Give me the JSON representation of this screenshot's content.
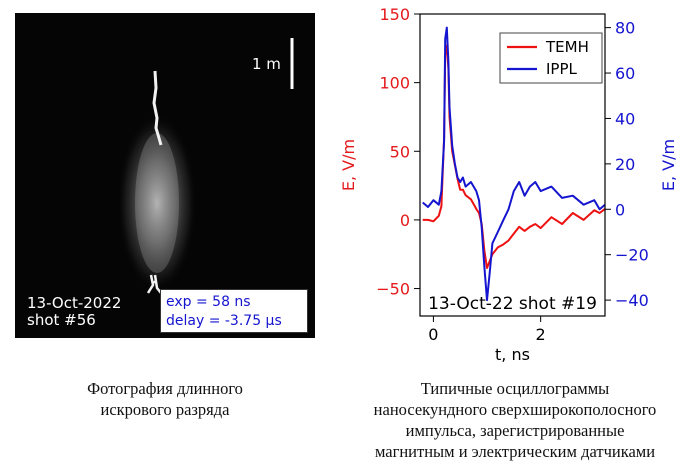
{
  "photo": {
    "scale_label": "1 m",
    "date": "13-Oct-2022",
    "shot": "shot #56",
    "exposure": "exp = 58 ns",
    "delay": "delay = -3.75 µs"
  },
  "captions": {
    "left": [
      "Фотография длинного",
      "искрового разряда"
    ],
    "right": [
      "Типичные осциллограммы",
      "наносекундного сверхширокополосного",
      "импульса, зарегистрированные",
      "магнитным и электрическим датчиками"
    ]
  },
  "chart_data": {
    "type": "line",
    "xlabel": "t, ns",
    "ylabel_left": "E, V/m",
    "ylabel_right": "E, V/m",
    "xlim": [
      -0.25,
      3.2
    ],
    "ylim_left": [
      -70,
      150
    ],
    "ylim_right": [
      -47,
      86
    ],
    "xticks": [
      0,
      2
    ],
    "yticks_left": [
      -50,
      0,
      50,
      100,
      150
    ],
    "yticks_right": [
      -40,
      -20,
      0,
      20,
      40,
      60,
      80
    ],
    "left_axis_color": "#e41a1c",
    "right_axis_color": "#1515d0",
    "legend_position": "top-right",
    "annotation": "13-Oct-22 shot #19",
    "series": [
      {
        "name": "TEMH",
        "axis": "left",
        "color": "#ee1111",
        "x": [
          -0.2,
          -0.1,
          0.0,
          0.1,
          0.15,
          0.2,
          0.22,
          0.25,
          0.28,
          0.3,
          0.35,
          0.4,
          0.45,
          0.5,
          0.55,
          0.6,
          0.7,
          0.8,
          0.85,
          0.9,
          0.95,
          1.0,
          1.05,
          1.1,
          1.2,
          1.3,
          1.4,
          1.5,
          1.6,
          1.7,
          1.8,
          1.9,
          2.0,
          2.2,
          2.4,
          2.6,
          2.8,
          3.0,
          3.1,
          3.2
        ],
        "y": [
          0,
          0,
          -1,
          3,
          10,
          60,
          120,
          127,
          110,
          75,
          50,
          40,
          30,
          22,
          22,
          18,
          15,
          8,
          5,
          -3,
          -22,
          -35,
          -30,
          -25,
          -20,
          -18,
          -15,
          -10,
          -5,
          -8,
          -5,
          -3,
          -6,
          2,
          -3,
          5,
          0,
          7,
          5,
          8
        ]
      },
      {
        "name": "IPPL",
        "axis": "right",
        "color": "#1515d0",
        "x": [
          -0.2,
          -0.1,
          0.0,
          0.1,
          0.15,
          0.2,
          0.22,
          0.25,
          0.28,
          0.3,
          0.35,
          0.4,
          0.45,
          0.5,
          0.55,
          0.6,
          0.7,
          0.8,
          0.85,
          0.9,
          0.95,
          1.0,
          1.05,
          1.1,
          1.2,
          1.3,
          1.4,
          1.5,
          1.6,
          1.7,
          1.8,
          1.9,
          2.0,
          2.2,
          2.4,
          2.6,
          2.8,
          3.0,
          3.1,
          3.2
        ],
        "y": [
          3,
          1,
          4,
          2,
          8,
          30,
          75,
          80,
          65,
          45,
          28,
          20,
          14,
          12,
          14,
          10,
          12,
          8,
          4,
          -8,
          -25,
          -40,
          -28,
          -15,
          -10,
          -5,
          0,
          8,
          12,
          6,
          10,
          12,
          8,
          10,
          5,
          6,
          2,
          4,
          0,
          2
        ]
      }
    ]
  }
}
